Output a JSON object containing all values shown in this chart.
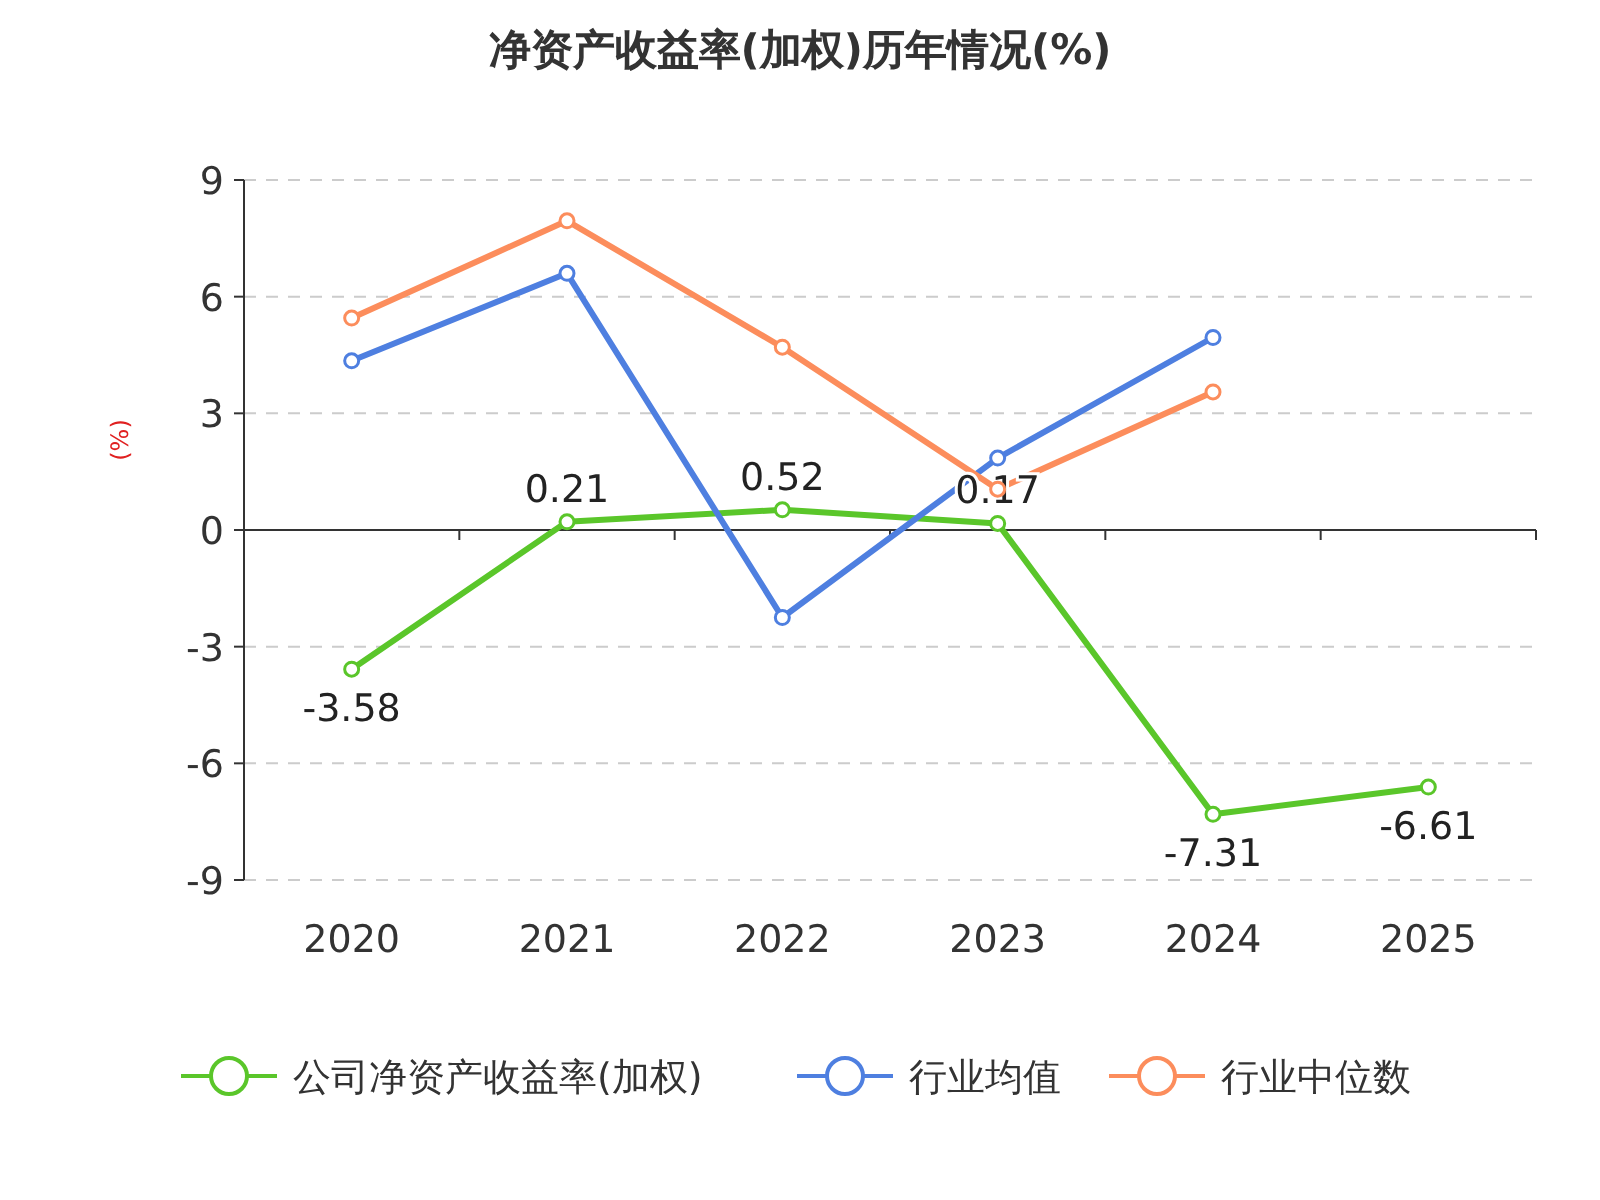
{
  "chart_data": {
    "type": "line",
    "title": "净资产收益率(加权)历年情况(%)",
    "ylabel": "(%)",
    "categories": [
      "2020",
      "2021",
      "2022",
      "2023",
      "2024",
      "2025"
    ],
    "series": [
      {
        "name": "公司净资产收益率(加权)",
        "color": "#5ac62a",
        "values": [
          -3.58,
          0.21,
          0.52,
          0.17,
          -7.31,
          -6.61
        ],
        "value_labels": [
          "-3.58",
          "0.21",
          "0.52",
          "0.17",
          "-7.31",
          "-6.61"
        ]
      },
      {
        "name": "行业均值",
        "color": "#4e7fe0",
        "values": [
          4.35,
          6.6,
          -2.25,
          1.85,
          4.95,
          null
        ]
      },
      {
        "name": "行业中位数",
        "color": "#fc8d5c",
        "values": [
          5.45,
          7.95,
          4.7,
          1.05,
          3.55,
          null
        ]
      }
    ],
    "ylim": [
      -9,
      9
    ],
    "yticks": [
      -9,
      -6,
      -3,
      0,
      3,
      6,
      9
    ],
    "grid": "y",
    "legend": "bottom",
    "marker": "circle",
    "line_style": "solid"
  }
}
